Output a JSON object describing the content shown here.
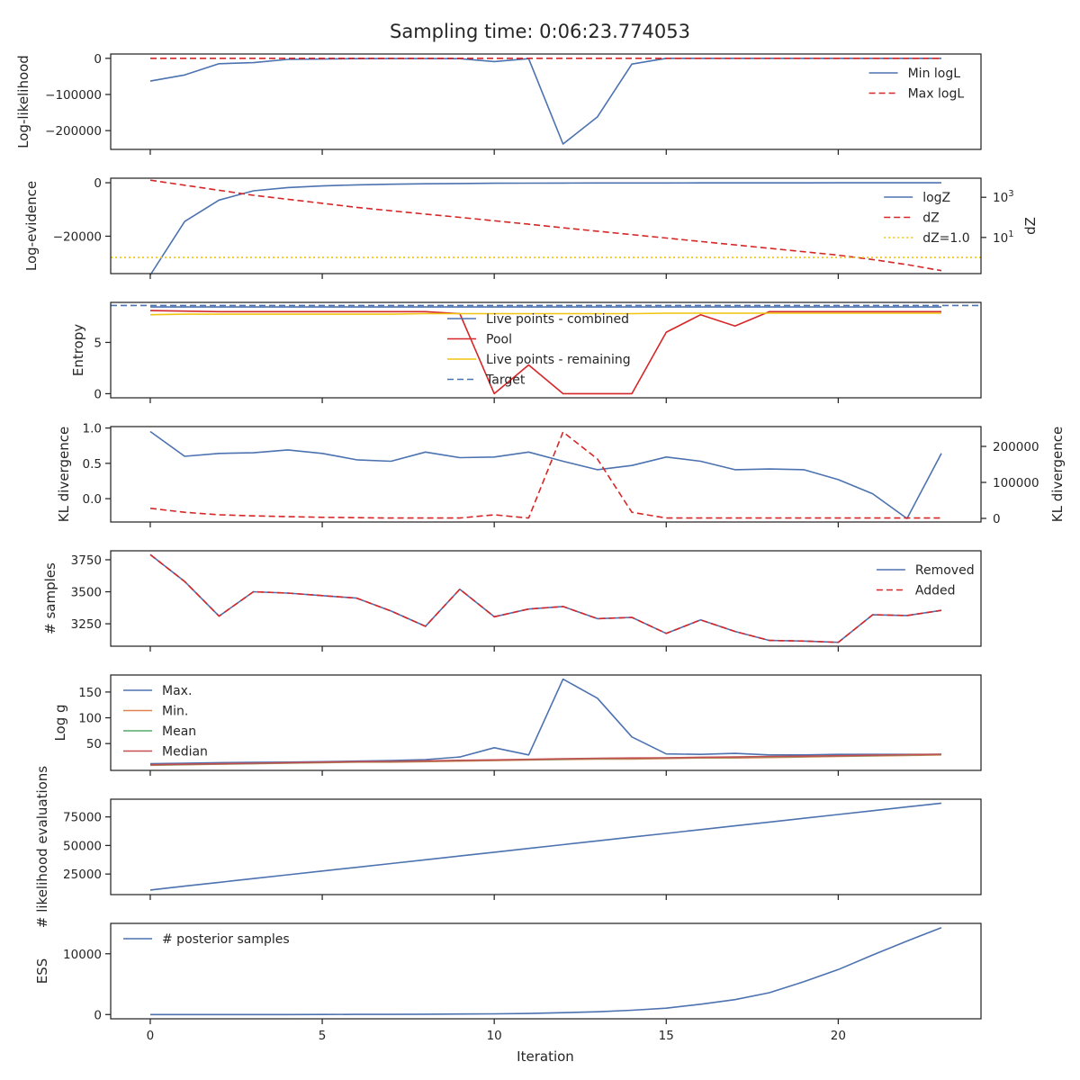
{
  "suptitle": "Sampling time: 0:06:23.774053",
  "xlabel": "Iteration",
  "x_ticks": [
    0,
    5,
    10,
    15,
    20
  ],
  "xlim": [
    -1.15,
    24.15
  ],
  "colors": {
    "blue": "#4c72b0",
    "red": "#d62728",
    "yellow": "#f1c40f",
    "orange": "#dd8452",
    "green": "#55a868",
    "crimson": "#c44e52",
    "axis": "#262626"
  },
  "chart_data": [
    {
      "type": "line",
      "ylabel": "Log-likelihood",
      "ylim": [
        -252000,
        12000
      ],
      "yticks": [
        {
          "v": 0,
          "label": "0"
        },
        {
          "v": -100000,
          "label": "−100000"
        },
        {
          "v": -200000,
          "label": "−200000"
        }
      ],
      "x": [
        0,
        1,
        2,
        3,
        4,
        5,
        6,
        7,
        8,
        9,
        10,
        11,
        12,
        13,
        14,
        15,
        16,
        17,
        18,
        19,
        20,
        21,
        22,
        23
      ],
      "series": [
        {
          "name": "Min logL",
          "color": "#4c72b0",
          "dash": "",
          "values": [
            -63000,
            -46000,
            -15000,
            -12000,
            -3000,
            -2000,
            -1000,
            -800,
            -700,
            -1000,
            -9000,
            -1000,
            -237000,
            -162000,
            -16000,
            0,
            0,
            0,
            0,
            0,
            0,
            0,
            0,
            0
          ]
        },
        {
          "name": "Max logL",
          "color": "#d62728",
          "dash": "7,4",
          "values": [
            0,
            0,
            0,
            0,
            0,
            0,
            0,
            0,
            0,
            0,
            0,
            0,
            0,
            0,
            0,
            0,
            0,
            0,
            0,
            0,
            0,
            0,
            0,
            0
          ]
        }
      ],
      "legend": "upper right"
    },
    {
      "type": "line",
      "ylabel": "Log-evidence",
      "ylim": [
        -34000,
        1700
      ],
      "yticks": [
        {
          "v": 0,
          "label": "0"
        },
        {
          "v": -20000,
          "label": "−20000"
        }
      ],
      "right_axis": {
        "label": "dZ",
        "scale": "log",
        "ylim_log10": [
          -0.8,
          3.95
        ],
        "ticks": [
          {
            "exp": 3,
            "base": "10",
            "sup": "3"
          },
          {
            "exp": 1,
            "base": "10",
            "sup": "1"
          }
        ]
      },
      "x": [
        0,
        1,
        2,
        3,
        4,
        5,
        6,
        7,
        8,
        9,
        10,
        11,
        12,
        13,
        14,
        15,
        16,
        17,
        18,
        19,
        20,
        21,
        22,
        23
      ],
      "series": [
        {
          "name": "logZ",
          "color": "#4c72b0",
          "dash": "",
          "axis": "left",
          "values": [
            -34500,
            -14500,
            -6500,
            -3000,
            -1800,
            -1200,
            -800,
            -550,
            -400,
            -300,
            -200,
            -150,
            -120,
            -100,
            -80,
            -70,
            -60,
            -50,
            -40,
            -35,
            -30,
            -25,
            -20,
            -15
          ]
        },
        {
          "name": "dZ",
          "color": "#d62728",
          "dash": "7,4",
          "axis": "right",
          "log10_values": [
            3.85,
            3.6,
            3.35,
            3.1,
            2.9,
            2.7,
            2.5,
            2.33,
            2.16,
            2.0,
            1.83,
            1.66,
            1.48,
            1.31,
            1.14,
            0.97,
            0.8,
            0.63,
            0.46,
            0.29,
            0.12,
            -0.1,
            -0.35,
            -0.65
          ]
        },
        {
          "name": "dZ=1.0",
          "color": "#f1c40f",
          "dash": "2,3",
          "axis": "right",
          "constant_log10": 0
        }
      ],
      "legend": "upper right"
    },
    {
      "type": "line",
      "ylabel": "Entropy",
      "ylim": [
        -0.4,
        8.9
      ],
      "yticks": [
        {
          "v": 5,
          "label": "5"
        },
        {
          "v": 0,
          "label": "0"
        }
      ],
      "x": [
        0,
        1,
        2,
        3,
        4,
        5,
        6,
        7,
        8,
        9,
        10,
        11,
        12,
        13,
        14,
        15,
        16,
        17,
        18,
        19,
        20,
        21,
        22,
        23
      ],
      "series": [
        {
          "name": "Live points - combined",
          "color": "#4c72b0",
          "dash": "",
          "values": [
            8.45,
            8.45,
            8.45,
            8.45,
            8.45,
            8.45,
            8.45,
            8.45,
            8.45,
            8.45,
            8.45,
            8.45,
            8.45,
            8.45,
            8.45,
            8.45,
            8.45,
            8.45,
            8.45,
            8.45,
            8.45,
            8.45,
            8.45,
            8.45
          ]
        },
        {
          "name": "Pool",
          "color": "#d62728",
          "dash": "",
          "values": [
            8.1,
            8.05,
            8.0,
            8.0,
            8.0,
            8.0,
            8.0,
            8.0,
            8.0,
            7.8,
            0.0,
            2.8,
            0.0,
            0.0,
            0.0,
            6.0,
            7.7,
            6.6,
            8.0,
            8.0,
            8.0,
            8.0,
            8.0,
            8.0
          ]
        },
        {
          "name": "Live points - remaining",
          "color": "#f1c40f",
          "dash": "",
          "values": [
            7.7,
            7.75,
            7.75,
            7.75,
            7.75,
            7.75,
            7.75,
            7.75,
            7.8,
            7.8,
            7.8,
            7.8,
            7.8,
            7.8,
            7.8,
            7.85,
            7.85,
            7.85,
            7.85,
            7.85,
            7.85,
            7.85,
            7.85,
            7.85
          ]
        },
        {
          "name": "Target",
          "color": "#4c72b0",
          "dash": "7,4",
          "constant": 8.6
        }
      ],
      "legend": "center"
    },
    {
      "type": "line",
      "ylabel": "KL divergence",
      "ylim": [
        -0.33,
        1.02
      ],
      "yticks": [
        {
          "v": 1.0,
          "label": "1.0"
        },
        {
          "v": 0.5,
          "label": "0.5"
        },
        {
          "v": 0.0,
          "label": "0.0"
        }
      ],
      "right_axis": {
        "label": "KL divergence",
        "scale": "linear",
        "ylim": [
          -10000,
          255000
        ],
        "ticks": [
          {
            "v": 200000,
            "label": "200000"
          },
          {
            "v": 100000,
            "label": "100000"
          },
          {
            "v": 0,
            "label": "0"
          }
        ]
      },
      "x": [
        0,
        1,
        2,
        3,
        4,
        5,
        6,
        7,
        8,
        9,
        10,
        11,
        12,
        13,
        14,
        15,
        16,
        17,
        18,
        19,
        20,
        21,
        22,
        23
      ],
      "series": [
        {
          "color": "#4c72b0",
          "dash": "",
          "axis": "left",
          "values": [
            0.95,
            0.6,
            0.64,
            0.65,
            0.69,
            0.64,
            0.55,
            0.53,
            0.66,
            0.58,
            0.59,
            0.66,
            0.53,
            0.41,
            0.47,
            0.59,
            0.53,
            0.41,
            0.42,
            0.41,
            0.27,
            0.07,
            -0.28,
            0.64
          ]
        },
        {
          "color": "#d62728",
          "dash": "7,4",
          "axis": "right",
          "values": [
            28000,
            17000,
            10000,
            7000,
            5000,
            3000,
            2000,
            1000,
            1000,
            1000,
            10000,
            1000,
            240000,
            165000,
            17000,
            1000,
            1000,
            1000,
            1000,
            1000,
            1000,
            1000,
            1000,
            1000
          ]
        }
      ]
    },
    {
      "type": "line",
      "ylabel": "# samples",
      "ylim": [
        3075,
        3820
      ],
      "yticks": [
        {
          "v": 3750,
          "label": "3750"
        },
        {
          "v": 3500,
          "label": "3500"
        },
        {
          "v": 3250,
          "label": "3250"
        }
      ],
      "x": [
        0,
        1,
        2,
        3,
        4,
        5,
        6,
        7,
        8,
        9,
        10,
        11,
        12,
        13,
        14,
        15,
        16,
        17,
        18,
        19,
        20,
        21,
        22,
        23
      ],
      "series": [
        {
          "name": "Removed",
          "color": "#4c72b0",
          "dash": "",
          "values": [
            3790,
            3580,
            3310,
            3500,
            3490,
            3470,
            3450,
            3350,
            3230,
            3520,
            3305,
            3365,
            3385,
            3290,
            3300,
            3175,
            3280,
            3190,
            3120,
            3115,
            3105,
            3320,
            3315,
            3355
          ]
        },
        {
          "name": "Added",
          "color": "#d62728",
          "dash": "7,4",
          "values": [
            3790,
            3580,
            3310,
            3500,
            3490,
            3470,
            3450,
            3350,
            3230,
            3520,
            3305,
            3365,
            3385,
            3290,
            3300,
            3175,
            3280,
            3190,
            3120,
            3115,
            3105,
            3320,
            3315,
            3355
          ]
        }
      ],
      "legend": "upper right"
    },
    {
      "type": "line",
      "ylabel": "Log g",
      "ylim": [
        -2,
        183
      ],
      "yticks": [
        {
          "v": 150,
          "label": "150"
        },
        {
          "v": 100,
          "label": "100"
        },
        {
          "v": 50,
          "label": "50"
        }
      ],
      "x": [
        0,
        1,
        2,
        3,
        4,
        5,
        6,
        7,
        8,
        9,
        10,
        11,
        12,
        13,
        14,
        15,
        16,
        17,
        18,
        19,
        20,
        21,
        22,
        23
      ],
      "series": [
        {
          "name": "Max.",
          "color": "#4c72b0",
          "dash": "",
          "values": [
            11,
            12,
            13,
            13.5,
            14,
            15,
            16,
            17,
            19,
            24,
            42,
            28,
            175,
            138,
            63,
            30,
            29,
            31,
            28,
            28,
            29,
            29,
            29,
            29
          ]
        },
        {
          "name": "Min.",
          "color": "#dd8452",
          "dash": "",
          "values": [
            8,
            9,
            10,
            11,
            12,
            13,
            14,
            14,
            15,
            16,
            17,
            18,
            19,
            20,
            20,
            21,
            22,
            22,
            23,
            24,
            25,
            26,
            27,
            28
          ]
        },
        {
          "name": "Mean",
          "color": "#55a868",
          "dash": "",
          "values": [
            8.5,
            9.5,
            10.5,
            11.5,
            12.5,
            13.5,
            14.5,
            15,
            16,
            17,
            18,
            19,
            20,
            21,
            21.5,
            22,
            23,
            23.5,
            24.5,
            25,
            26,
            27,
            28,
            29
          ]
        },
        {
          "name": "Median",
          "color": "#c44e52",
          "dash": "",
          "values": [
            9,
            10,
            11,
            12,
            13,
            14,
            15,
            15.5,
            16.5,
            17.5,
            18.5,
            19.5,
            20.5,
            21.5,
            22,
            22.5,
            23.5,
            24,
            25,
            25.5,
            26.5,
            27.5,
            28.5,
            29.5
          ]
        }
      ],
      "legend": "upper left"
    },
    {
      "type": "line",
      "ylabel": "# likelihood evaluations",
      "ylim": [
        7000,
        90500
      ],
      "yticks": [
        {
          "v": 75000,
          "label": "75000"
        },
        {
          "v": 50000,
          "label": "50000"
        },
        {
          "v": 25000,
          "label": "25000"
        }
      ],
      "x": [
        0,
        1,
        2,
        3,
        4,
        5,
        6,
        7,
        8,
        9,
        10,
        11,
        12,
        13,
        14,
        15,
        16,
        17,
        18,
        19,
        20,
        21,
        22,
        23
      ],
      "series": [
        {
          "color": "#4c72b0",
          "dash": "",
          "values": [
            11000,
            14400,
            17700,
            21000,
            24300,
            27600,
            30900,
            34200,
            37500,
            40800,
            44100,
            47400,
            50700,
            54000,
            57300,
            60600,
            63900,
            67200,
            70500,
            73800,
            77100,
            80400,
            83700,
            87000
          ]
        }
      ]
    },
    {
      "type": "line",
      "ylabel": "ESS",
      "ylim": [
        -700,
        15000
      ],
      "yticks": [
        {
          "v": 10000,
          "label": "10000"
        },
        {
          "v": 0,
          "label": "0"
        }
      ],
      "x": [
        0,
        1,
        2,
        3,
        4,
        5,
        6,
        7,
        8,
        9,
        10,
        11,
        12,
        13,
        14,
        15,
        16,
        17,
        18,
        19,
        20,
        21,
        22,
        23
      ],
      "series": [
        {
          "name": "# posterior samples",
          "color": "#4c72b0",
          "dash": "",
          "values": [
            0,
            0,
            0,
            0,
            0,
            10,
            20,
            30,
            50,
            80,
            120,
            180,
            300,
            450,
            700,
            1050,
            1700,
            2450,
            3600,
            5400,
            7400,
            9800,
            12100,
            14300
          ]
        }
      ],
      "legend": "upper left"
    }
  ]
}
